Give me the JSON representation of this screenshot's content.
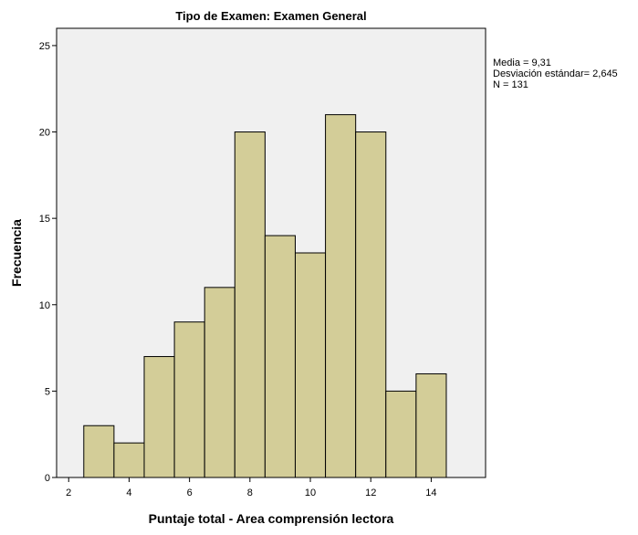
{
  "chart_data": {
    "type": "bar",
    "title": "Tipo de Examen: Examen General",
    "xlabel": "Puntaje total - Area comprensión lectora",
    "ylabel": "Frecuencia",
    "bin_width": 1,
    "bins": [
      {
        "x0": 2.5,
        "x1": 3.5,
        "count": 3
      },
      {
        "x0": 3.5,
        "x1": 4.5,
        "count": 2
      },
      {
        "x0": 4.5,
        "x1": 5.5,
        "count": 7
      },
      {
        "x0": 5.5,
        "x1": 6.5,
        "count": 9
      },
      {
        "x0": 6.5,
        "x1": 7.5,
        "count": 11
      },
      {
        "x0": 7.5,
        "x1": 8.5,
        "count": 20
      },
      {
        "x0": 8.5,
        "x1": 9.5,
        "count": 14
      },
      {
        "x0": 9.5,
        "x1": 10.5,
        "count": 13
      },
      {
        "x0": 10.5,
        "x1": 11.5,
        "count": 21
      },
      {
        "x0": 11.5,
        "x1": 12.5,
        "count": 20
      },
      {
        "x0": 12.5,
        "x1": 13.5,
        "count": 5
      },
      {
        "x0": 13.5,
        "x1": 14.5,
        "count": 6
      }
    ],
    "xlim": [
      1.6,
      15.8
    ],
    "ylim": [
      0,
      26
    ],
    "xticks": [
      2,
      4,
      6,
      8,
      10,
      12,
      14
    ],
    "yticks": [
      0,
      5,
      10,
      15,
      20,
      25
    ],
    "grid": false,
    "stats": [
      "Media = 9,31",
      "Desviación estándar= 2,645",
      "N = 131"
    ],
    "colors": {
      "bar_fill": "#d3cd98",
      "bar_stroke": "#000000",
      "plot_background": "#f0f0f0",
      "axis": "#000000"
    }
  }
}
